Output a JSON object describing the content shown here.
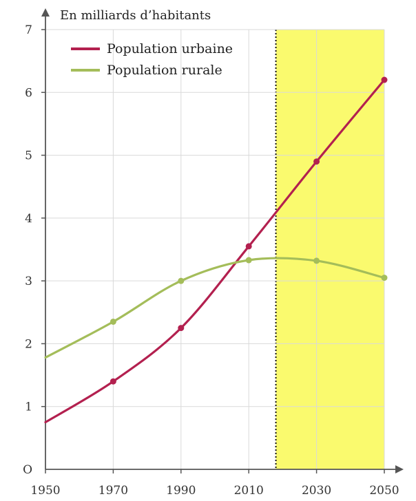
{
  "chart_data": {
    "type": "line",
    "title": "",
    "ylabel": "En milliards d’habitants",
    "xlabel": "",
    "x_ticks": [
      1950,
      1970,
      1990,
      2010,
      2030,
      2050
    ],
    "y_ticks": [
      1,
      2,
      3,
      4,
      5,
      6,
      7
    ],
    "y_origin_label": "O",
    "xlim": [
      1950,
      2050
    ],
    "ylim": [
      0,
      7
    ],
    "grid": true,
    "legend_position": "top-left",
    "projection_start": 2018,
    "series": [
      {
        "name": "Population urbaine",
        "color": "#b3204f",
        "x": [
          1950,
          1970,
          1990,
          2010,
          2030,
          2050
        ],
        "y": [
          0.75,
          1.4,
          2.25,
          3.55,
          4.9,
          6.2
        ],
        "markers": [
          1970,
          1990,
          2010,
          2030,
          2050
        ]
      },
      {
        "name": "Population rurale",
        "color": "#a4bd5a",
        "x": [
          1950,
          1970,
          1990,
          2010,
          2030,
          2050
        ],
        "y": [
          1.78,
          2.35,
          3.0,
          3.33,
          3.32,
          3.05
        ],
        "markers": [
          1970,
          1990,
          2010,
          2030,
          2050
        ]
      }
    ],
    "colors": {
      "projection_band": "#fafa6e",
      "grid": "#d9d9d9",
      "axis": "#555555"
    }
  }
}
